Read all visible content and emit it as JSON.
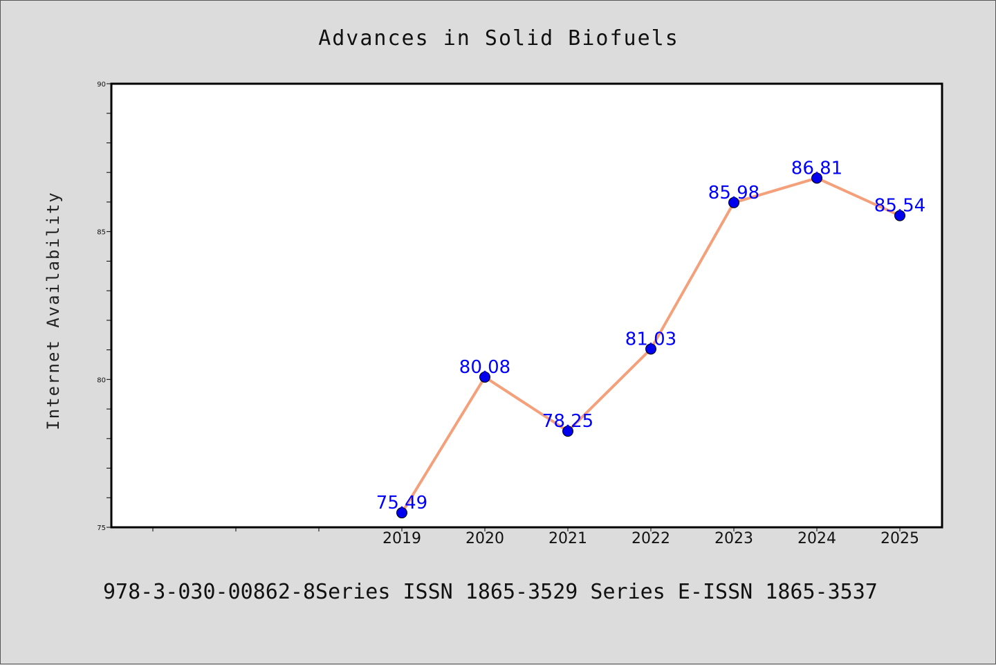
{
  "chart_data": {
    "type": "line",
    "title": "Advances in Solid Biofuels",
    "xlabel": "",
    "ylabel": "Internet Availability",
    "categories": [
      "2019",
      "2020",
      "2021",
      "2022",
      "2023",
      "2024",
      "2025"
    ],
    "series": [
      {
        "values": [
          75.49,
          80.08,
          78.25,
          81.03,
          85.98,
          86.81,
          85.54
        ]
      }
    ],
    "data_labels": [
      "75.49",
      "80.08",
      "78.25",
      "81.03",
      "85.98",
      "86.81",
      "85.54"
    ],
    "ylim": [
      75,
      90
    ],
    "yticks": [
      "75",
      "80",
      "85",
      "90"
    ],
    "grid": false,
    "colors": {
      "line": "#f4a07a",
      "marker": "#0000ee",
      "label": "#0000ff"
    }
  },
  "footer": "978-3-030-00862-8Series ISSN 1865-3529 Series E-ISSN 1865-3537"
}
